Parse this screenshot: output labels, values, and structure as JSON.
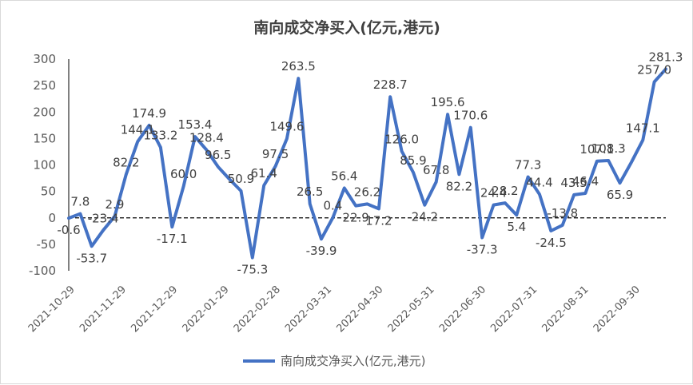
{
  "chart_data": {
    "type": "line",
    "title": "南向成交净买入(亿元,港元)",
    "legend": "南向成交净买入(亿元,港元)",
    "legend_position": "bottom",
    "color": "#4472C4",
    "zero_line": "dashed",
    "grid": false,
    "ylim": [
      -100,
      300
    ],
    "yticks": [
      "300",
      "250",
      "200",
      "150",
      "100",
      "50",
      "0",
      "-50",
      "-100"
    ],
    "xticks": [
      "2021-10-29",
      "2021-11-29",
      "2021-12-29",
      "2022-01-29",
      "2022-02-28",
      "2022-03-31",
      "2022-04-30",
      "2022-05-31",
      "2022-06-30",
      "2022-07-31",
      "2022-08-31",
      "2022-09-30"
    ],
    "values": [
      -0.6,
      7.8,
      -53.7,
      -23.4,
      2.9,
      82.2,
      144.1,
      174.9,
      133.2,
      -17.1,
      60.0,
      153.4,
      128.4,
      96.5,
      73.0,
      50.9,
      -75.3,
      61.4,
      97.5,
      149.6,
      263.5,
      26.5,
      -39.9,
      0.4,
      56.4,
      22.9,
      26.2,
      17.2,
      228.7,
      126.0,
      85.9,
      24.2,
      67.8,
      195.6,
      82.2,
      170.6,
      -37.3,
      24.4,
      28.2,
      5.4,
      77.3,
      44.4,
      -24.5,
      -13.8,
      43.5,
      46.4,
      107.1,
      108.3,
      65.9,
      105.0,
      147.1,
      257.0,
      281.3
    ],
    "labels": [
      "-0.6",
      "7.8",
      "-53.7",
      "-23.4",
      "2.9",
      "82.2",
      "144.1",
      "174.9",
      "133.2",
      "-17.1",
      "60.0",
      "153.4",
      "128.4",
      "96.5",
      "",
      "50.9",
      "-75.3",
      "61.4",
      "97.5",
      "149.6",
      "263.5",
      "26.5",
      "-39.9",
      "0.4",
      "56.4",
      "22.9",
      "26.2",
      "17.2",
      "228.7",
      "126.0",
      "85.9",
      "24.2",
      "67.8",
      "195.6",
      "82.2",
      "170.6",
      "-37.3",
      "24.4",
      "28.2",
      "5.4",
      "77.3",
      "44.4",
      "-24.5",
      "-13.8",
      "43.5",
      "46.4",
      "107.1",
      "108.3",
      "65.9",
      "",
      "147.1",
      "257.0",
      "281.3"
    ]
  }
}
